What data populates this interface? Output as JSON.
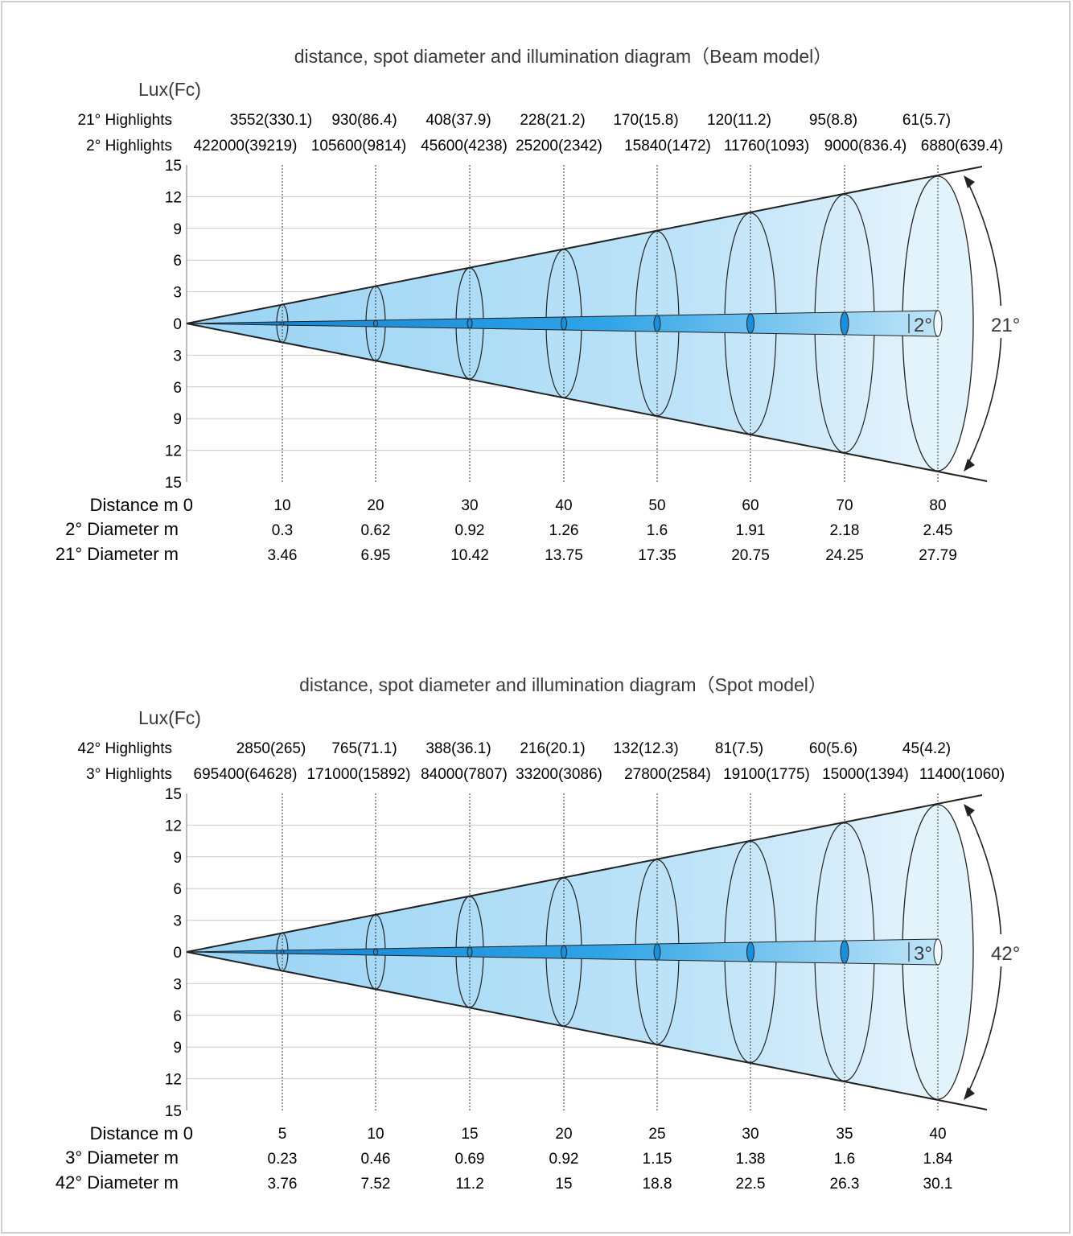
{
  "colors": {
    "beam_deep": "#1e97e0",
    "beam_mid": "#9fd6f5",
    "cone_fill": "#c4e6f8",
    "cone_light": "#e2f3fc",
    "stroke": "#222222",
    "text": "#333333"
  },
  "diagrams": [
    {
      "title": "distance, spot diameter and illumination diagram（Beam model）",
      "unit_label": "Lux(Fc)",
      "wide_angle": "21°",
      "narrow_angle": "2°",
      "wide_highlights_label": "21° Highlights",
      "narrow_highlights_label": "2° Highlights",
      "distance_label": "Distance m 0",
      "narrow_diameter_label": "2° Diameter m",
      "wide_diameter_label": "21° Diameter m",
      "y_ticks": [
        "15",
        "12",
        "9",
        "6",
        "3",
        "0",
        "3",
        "6",
        "9",
        "12",
        "15"
      ],
      "distances": [
        "10",
        "20",
        "30",
        "40",
        "50",
        "60",
        "70",
        "80"
      ],
      "wide_highlights": [
        "3552(330.1)",
        "930(86.4)",
        "408(37.9)",
        "228(21.2)",
        "170(15.8)",
        "120(11.2)",
        "95(8.8)",
        "61(5.7)"
      ],
      "narrow_highlights": [
        "422000(39219)",
        "105600(9814)",
        "45600(4238)",
        "25200(2342)",
        "15840(1472)",
        "11760(1093)",
        "9000(836.4)",
        "6880(639.4)"
      ],
      "narrow_diameters": [
        "0.3",
        "0.62",
        "0.92",
        "1.26",
        "1.6",
        "1.91",
        "2.18",
        "2.45"
      ],
      "wide_diameters": [
        "3.46",
        "6.95",
        "10.42",
        "13.75",
        "17.35",
        "20.75",
        "24.25",
        "27.79"
      ]
    },
    {
      "title": "distance, spot diameter and illumination diagram（Spot model）",
      "unit_label": "Lux(Fc)",
      "wide_angle": "42°",
      "narrow_angle": "3°",
      "wide_highlights_label": "42° Highlights",
      "narrow_highlights_label": "3° Highlights",
      "distance_label": "Distance m 0",
      "narrow_diameter_label": "3° Diameter m",
      "wide_diameter_label": "42° Diameter m",
      "y_ticks": [
        "15",
        "12",
        "9",
        "6",
        "3",
        "0",
        "3",
        "6",
        "9",
        "12",
        "15"
      ],
      "distances": [
        "5",
        "10",
        "15",
        "20",
        "25",
        "30",
        "35",
        "40"
      ],
      "wide_highlights": [
        "2850(265)",
        "765(71.1)",
        "388(36.1)",
        "216(20.1)",
        "132(12.3)",
        "81(7.5)",
        "60(5.6)",
        "45(4.2)"
      ],
      "narrow_highlights": [
        "695400(64628)",
        "171000(15892)",
        "84000(7807)",
        "33200(3086)",
        "27800(2584)",
        "19100(1775)",
        "15000(1394)",
        "11400(1060)"
      ],
      "narrow_diameters": [
        "0.23",
        "0.46",
        "0.69",
        "0.92",
        "1.15",
        "1.38",
        "1.6",
        "1.84"
      ],
      "wide_diameters": [
        "3.76",
        "7.52",
        "11.2",
        "15",
        "18.8",
        "22.5",
        "26.3",
        "30.1"
      ]
    }
  ]
}
